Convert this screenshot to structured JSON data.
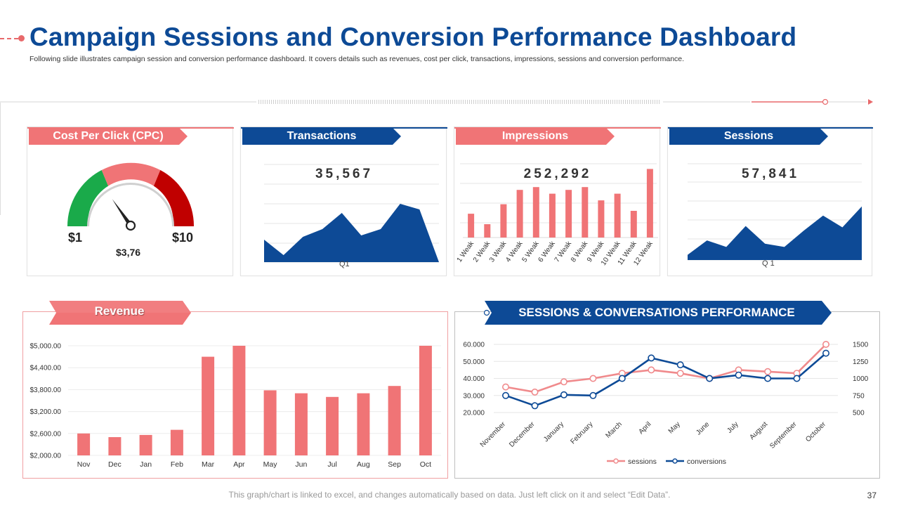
{
  "header": {
    "title": "Campaign Sessions and Conversion Performance Dashboard",
    "subtitle": "Following slide illustrates campaign session and conversion performance dashboard. It covers details such as revenues, cost per click, transactions, impressions, sessions and conversion performance."
  },
  "cpc": {
    "label": "Cost Per Click (CPC)",
    "min": "$1",
    "max": "$10",
    "value_text": "$3,76"
  },
  "transactions": {
    "label": "Transactions",
    "value": "35,567",
    "axis_label": "Q1"
  },
  "impressions": {
    "label": "Impressions",
    "value": "252,292"
  },
  "sessions": {
    "label": "Sessions",
    "value": "57,841",
    "axis_label": "Q 1"
  },
  "revenue": {
    "label": "Revenue"
  },
  "performance": {
    "label": "SESSIONS & CONVERSATIONS PERFORMANCE"
  },
  "footer": {
    "note": "This graph/chart is linked to excel, and changes automatically based on data. Just left click on it and select “Edit Data”.",
    "page": "37"
  },
  "colors": {
    "brand_blue": "#0d4a96",
    "brand_red": "#f07476",
    "gauge_green": "#1aaa4a",
    "gauge_pink": "#f07476",
    "gauge_darkred": "#c00000"
  },
  "chart_data": [
    {
      "id": "cpc_gauge",
      "type": "gauge",
      "min": 1,
      "max": 10,
      "value": 3.76,
      "bands": [
        "green",
        "pink",
        "darkred"
      ]
    },
    {
      "id": "transactions_area",
      "type": "area",
      "x": [
        1,
        2,
        3,
        4,
        5,
        6,
        7,
        8,
        9,
        10
      ],
      "values": [
        32,
        10,
        36,
        47,
        70,
        38,
        47,
        83,
        75,
        0
      ],
      "ylim": [
        0,
        100
      ],
      "xlabel": "Q1"
    },
    {
      "id": "impressions_bar",
      "type": "bar",
      "categories": [
        "1 Weak",
        "2 Weak",
        "3 Weak",
        "4 Weak",
        "5 Weak",
        "6 Weak",
        "7 Weak",
        "8 Weak",
        "9 Weak",
        "10 Weak",
        "11 Weak",
        "12 Weak"
      ],
      "values": [
        25,
        14,
        35,
        50,
        53,
        46,
        50,
        53,
        39,
        46,
        28,
        72
      ],
      "ylim": [
        0,
        90
      ]
    },
    {
      "id": "sessions_area",
      "type": "area",
      "x": [
        1,
        2,
        3,
        4,
        5,
        6,
        7,
        8,
        9,
        10
      ],
      "values": [
        8,
        30,
        20,
        52,
        25,
        20,
        45,
        68,
        50,
        82
      ],
      "ylim": [
        0,
        100
      ],
      "xlabel": "Q 1"
    },
    {
      "id": "revenue_bar",
      "type": "bar",
      "title": "Revenue",
      "categories": [
        "Nov",
        "Dec",
        "Jan",
        "Feb",
        "Mar",
        "Apr",
        "May",
        "Jun",
        "Jul",
        "Aug",
        "Sep",
        "Oct"
      ],
      "values": [
        2600,
        2500,
        2560,
        2700,
        4700,
        5000,
        3780,
        3700,
        3600,
        3700,
        3900,
        5000
      ],
      "ylim": [
        2000,
        5000
      ],
      "yticks": [
        "$5,000.00",
        "$4,400.00",
        "$3,800.00",
        "$3,200.00",
        "$2,600.00",
        "$2,000.00"
      ],
      "ytick_values": [
        5000,
        4400,
        3800,
        3200,
        2600,
        2000
      ]
    },
    {
      "id": "sessions_conversions_line",
      "type": "line",
      "title": "SESSIONS & CONVERSATIONS PERFORMANCE",
      "categories": [
        "November",
        "December",
        "January",
        "February",
        "March",
        "April",
        "May",
        "June",
        "July",
        "August",
        "September",
        "October"
      ],
      "series": [
        {
          "name": "sessions",
          "axis": "left",
          "values": [
            35000,
            32000,
            38000,
            40000,
            43000,
            45000,
            43000,
            40000,
            45000,
            44000,
            43000,
            60000
          ]
        },
        {
          "name": "conversions",
          "axis": "right",
          "values": [
            750,
            600,
            760,
            750,
            1000,
            1300,
            1200,
            1000,
            1050,
            1000,
            1000,
            1370
          ]
        }
      ],
      "left_ylim": [
        20000,
        60000
      ],
      "left_ticks": [
        "60.000",
        "50.000",
        "40.000",
        "30.000",
        "20.000"
      ],
      "left_tick_values": [
        60000,
        50000,
        40000,
        30000,
        20000
      ],
      "right_ylim": [
        500,
        1500
      ],
      "right_ticks": [
        "1500",
        "1250",
        "1000",
        "750",
        "500"
      ],
      "right_tick_values": [
        1500,
        1250,
        1000,
        750,
        500
      ],
      "legend": [
        "sessions",
        "conversions"
      ],
      "legend_position": "bottom"
    }
  ]
}
